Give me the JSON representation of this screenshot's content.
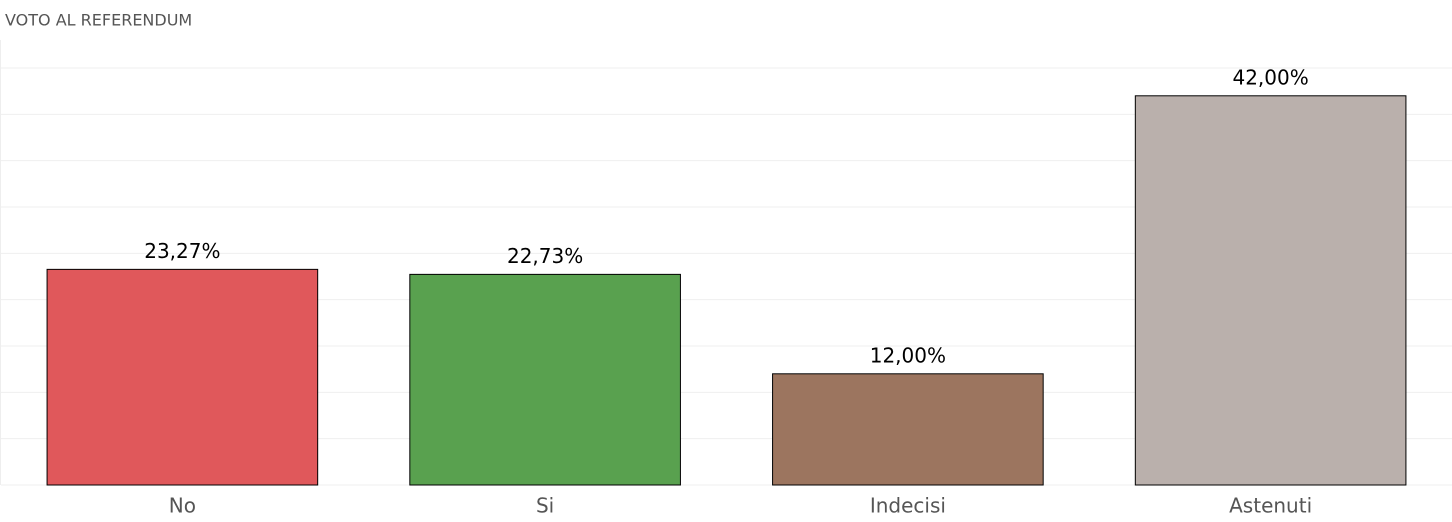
{
  "chart_data": {
    "type": "bar",
    "title": "VOTO AL REFERENDUM",
    "categories": [
      "No",
      "Si",
      "Indecisi",
      "Astenuti"
    ],
    "values": [
      23.27,
      22.73,
      12,
      42
    ],
    "value_labels": [
      "23,27%",
      "22,73%",
      "12,00%",
      "42,00%"
    ],
    "colors": [
      "#e0585b",
      "#59a14f",
      "#9c755f",
      "#bab0ac"
    ],
    "ylim": [
      0,
      45
    ],
    "yticks": [
      0,
      5,
      10,
      15,
      20,
      25,
      30,
      35,
      40,
      45
    ],
    "grid": true
  }
}
